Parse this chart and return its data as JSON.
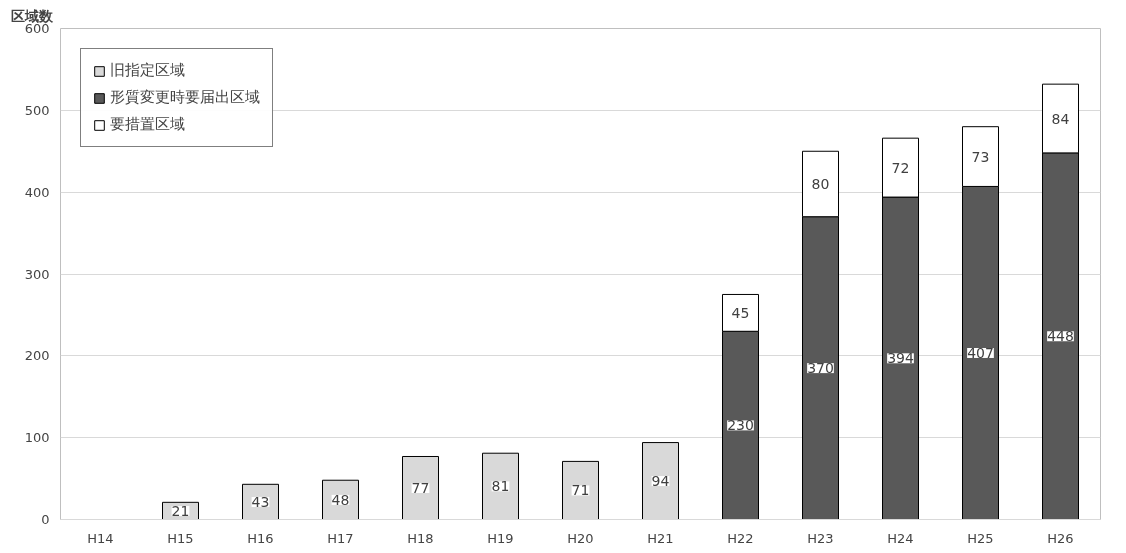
{
  "chart_data": {
    "type": "bar",
    "stacked": true,
    "ylabel": "区域数",
    "categories": [
      "H14",
      "H15",
      "H16",
      "H17",
      "H18",
      "H19",
      "H20",
      "H21",
      "H22",
      "H23",
      "H24",
      "H25",
      "H26"
    ],
    "series": [
      {
        "name": "旧指定区域",
        "color": "#d9d9d9",
        "values": [
          null,
          21,
          43,
          48,
          77,
          81,
          71,
          94,
          null,
          null,
          null,
          null,
          null
        ]
      },
      {
        "name": "形質変更時要届出区域",
        "color": "#595959",
        "values": [
          null,
          null,
          null,
          null,
          null,
          null,
          null,
          null,
          230,
          370,
          394,
          407,
          448
        ]
      },
      {
        "name": "要措置区域",
        "color": "#ffffff",
        "values": [
          null,
          null,
          null,
          null,
          null,
          null,
          null,
          null,
          45,
          80,
          72,
          73,
          84
        ]
      }
    ],
    "ylim": [
      0,
      600
    ],
    "yticks": [
      0,
      100,
      200,
      300,
      400,
      500,
      600
    ],
    "grid": "y",
    "legend": "top left",
    "data_labels": true
  }
}
